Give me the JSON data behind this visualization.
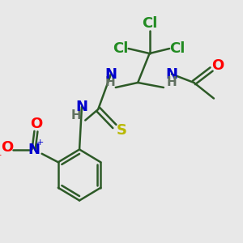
{
  "background_color": "#e8e8e8",
  "bond_color": "#2d5a27",
  "bond_width": 1.8,
  "atom_colors": {
    "Cl": "#228B22",
    "N": "#0000cd",
    "H": "#607060",
    "O": "#ff0000",
    "S": "#b8b800",
    "C": "#2d5a27",
    "Np": "#0000cd",
    "Om": "#ff0000"
  },
  "font_size_atoms": 13,
  "font_size_H": 11,
  "font_size_super": 8
}
